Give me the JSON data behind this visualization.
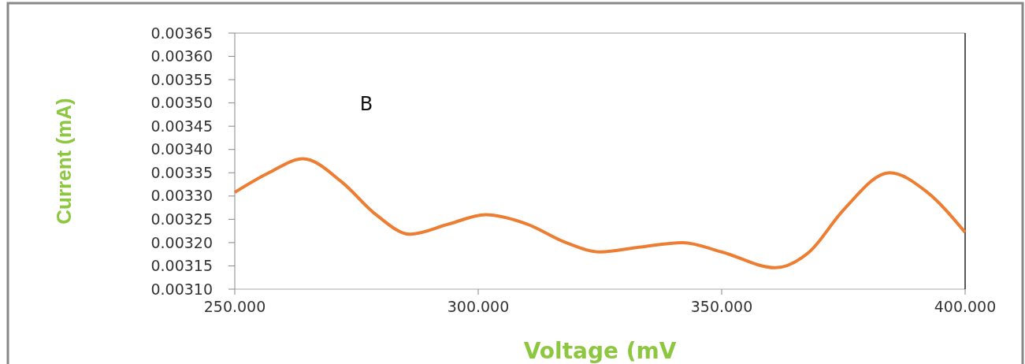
{
  "chart_data": {
    "type": "line",
    "xlabel": "Voltage (mV",
    "ylabel": "Current (mA)",
    "annotations": [
      "B"
    ],
    "x": [
      250,
      257,
      264,
      272,
      279,
      286,
      294,
      301.5,
      310,
      318,
      325,
      333,
      342,
      350,
      361,
      368,
      375,
      384.5,
      392,
      400
    ],
    "series": [
      {
        "color": "#ed7d31",
        "values": [
          0.003308,
          0.00335,
          0.00338,
          0.00333,
          0.00326,
          0.003218,
          0.00324,
          0.00326,
          0.00324,
          0.0032,
          0.00318,
          0.00319,
          0.0032,
          0.00318,
          0.003146,
          0.00318,
          0.00327,
          0.00335,
          0.00331,
          0.003222
        ]
      }
    ],
    "xlim": [
      250,
      400
    ],
    "xticks": [
      {
        "value": 250,
        "label": "250.000"
      },
      {
        "value": 300,
        "label": "300.000"
      },
      {
        "value": 350,
        "label": "350.000"
      },
      {
        "value": 400,
        "label": "400.000"
      }
    ],
    "ylim": [
      0.0031,
      0.00365
    ],
    "yticks": [
      {
        "value": 0.0031,
        "label": "0.00310"
      },
      {
        "value": 0.00315,
        "label": "0.00315"
      },
      {
        "value": 0.0032,
        "label": "0.00320"
      },
      {
        "value": 0.00325,
        "label": "0.00325"
      },
      {
        "value": 0.0033,
        "label": "0.00330"
      },
      {
        "value": 0.00335,
        "label": "0.00335"
      },
      {
        "value": 0.0034,
        "label": "0.00340"
      },
      {
        "value": 0.00345,
        "label": "0.00345"
      },
      {
        "value": 0.0035,
        "label": "0.00350"
      },
      {
        "value": 0.00355,
        "label": "0.00355"
      },
      {
        "value": 0.0036,
        "label": "0.00360"
      },
      {
        "value": 0.00365,
        "label": "0.00365"
      }
    ],
    "grid": false,
    "marker": "none",
    "line_style": "solid"
  }
}
